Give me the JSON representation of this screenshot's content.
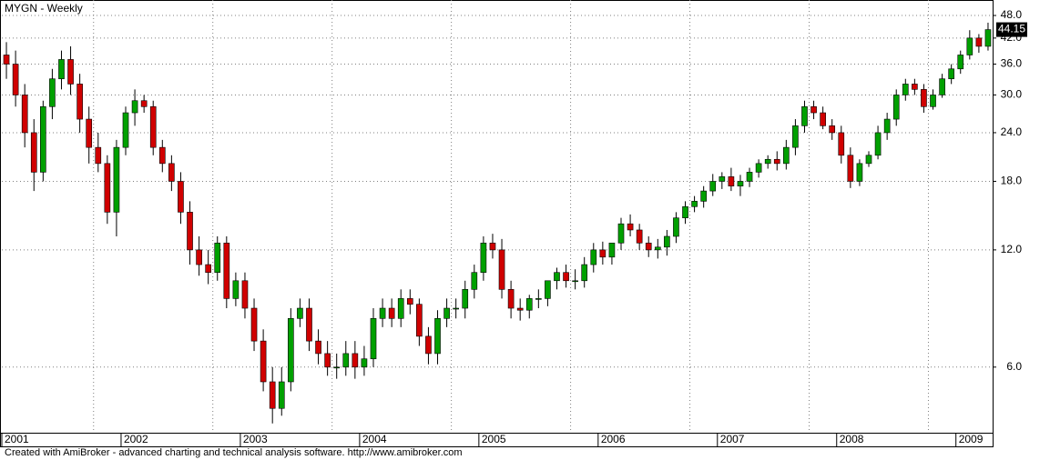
{
  "chart_data": {
    "type": "candlestick",
    "title": "MYGN - Weekly",
    "categories": [
      "2001",
      null,
      null,
      null,
      null,
      null,
      null,
      null,
      null,
      null,
      null,
      null,
      null,
      "2002",
      null,
      null,
      null,
      null,
      null,
      null,
      null,
      null,
      null,
      null,
      null,
      null,
      "2003",
      null,
      null,
      null,
      null,
      null,
      null,
      null,
      null,
      null,
      null,
      null,
      null,
      "2004",
      null,
      null,
      null,
      null,
      null,
      null,
      null,
      null,
      null,
      null,
      null,
      null,
      "2005",
      null,
      null,
      null,
      null,
      null,
      null,
      null,
      null,
      null,
      null,
      null,
      null,
      "2006",
      null,
      null,
      null,
      null,
      null,
      null,
      null,
      null,
      null,
      null,
      null,
      null,
      "2007",
      null,
      null,
      null,
      null,
      null,
      null,
      null,
      null,
      null,
      null,
      null,
      null,
      "2008",
      null,
      null,
      null,
      null,
      null,
      null,
      null,
      null,
      null,
      null,
      null,
      null,
      "2009",
      null,
      null,
      null
    ],
    "open": [
      38,
      36,
      30,
      24,
      19,
      28,
      33,
      37,
      32,
      26,
      22,
      20,
      15,
      22,
      27,
      29,
      28,
      22,
      20,
      18,
      15,
      12,
      11,
      10.5,
      12.5,
      9,
      10,
      8.5,
      7,
      5.5,
      4.7,
      5.5,
      8,
      8.5,
      7,
      6.5,
      6,
      6,
      6.5,
      6,
      6.3,
      8,
      8.5,
      8,
      9,
      8.7,
      7.2,
      6.5,
      8,
      8.5,
      8.5,
      9.5,
      10.5,
      12.5,
      12,
      9.5,
      8.5,
      8.4,
      9,
      9,
      10,
      10.5,
      10,
      10,
      11,
      12,
      11.5,
      12.5,
      14,
      13.5,
      12.5,
      12,
      12.2,
      13,
      14.5,
      15.5,
      16,
      17,
      18,
      18.5,
      17.5,
      18,
      19,
      20,
      20.5,
      20,
      22,
      25,
      28,
      27,
      25,
      24,
      21,
      18,
      20,
      21,
      24,
      26,
      30,
      32,
      31,
      28,
      30,
      33,
      35,
      38,
      42,
      40
    ],
    "high": [
      41,
      39,
      32,
      26,
      29,
      35,
      39,
      40,
      34,
      28,
      24,
      21,
      23,
      28,
      31,
      30,
      29,
      23,
      21,
      19,
      16,
      13,
      12,
      13,
      13,
      10.5,
      10.5,
      9,
      7.5,
      6,
      6,
      8.5,
      9,
      9,
      7.5,
      7,
      6.5,
      7,
      7,
      6.8,
      8.5,
      9,
      9,
      9.5,
      9.5,
      9,
      7.6,
      8.4,
      9,
      9,
      10,
      11,
      13,
      13.2,
      12.8,
      10,
      9,
      9.2,
      9.5,
      9.6,
      10.8,
      11,
      10.7,
      11.5,
      12.5,
      12.6,
      12.3,
      14.5,
      14.8,
      14,
      13,
      12.8,
      13.5,
      15,
      16,
      16.5,
      17.5,
      18.8,
      19,
      19.5,
      18.7,
      19.5,
      20.5,
      21,
      21.5,
      23,
      26,
      29,
      29,
      28,
      26,
      25,
      22,
      20.5,
      21.5,
      25,
      27,
      31,
      33,
      33,
      32,
      31,
      34,
      36,
      39,
      44,
      43,
      46
    ],
    "low": [
      33,
      28,
      22,
      17,
      18,
      26,
      31,
      30,
      24,
      20,
      19,
      14,
      13,
      21,
      25,
      27,
      21,
      19,
      17,
      14,
      11,
      10.3,
      9.8,
      10,
      8.5,
      8.6,
      8,
      6.6,
      5.2,
      4.3,
      4.5,
      5.2,
      7.6,
      6.6,
      6.1,
      5.7,
      5.6,
      5.7,
      5.6,
      5.7,
      6,
      7.6,
      7.6,
      7.6,
      8.2,
      6.8,
      6.1,
      6.1,
      7.6,
      8,
      8,
      9,
      10,
      11.4,
      9,
      8,
      7.9,
      8,
      8.5,
      8.6,
      9.5,
      9.6,
      9.5,
      9.6,
      10.5,
      11,
      11,
      12,
      13,
      12,
      11.5,
      11.4,
      11.6,
      12.5,
      14,
      15,
      15.4,
      16.5,
      17.2,
      17,
      16.5,
      17.4,
      18.4,
      19.4,
      19.2,
      19.3,
      21,
      24,
      26,
      24.5,
      23,
      20,
      17.3,
      17.5,
      19.6,
      20.5,
      23,
      25,
      29,
      30,
      27,
      27.5,
      29.5,
      32,
      34,
      37,
      38.5,
      39
    ],
    "close": [
      36,
      30,
      24,
      19,
      28,
      33,
      37,
      32,
      26,
      22,
      20,
      15,
      22,
      27,
      29,
      28,
      22,
      20,
      18,
      15,
      12,
      11,
      10.5,
      12.5,
      9,
      10,
      8.5,
      7,
      5.5,
      4.7,
      5.5,
      8,
      8.5,
      7,
      6.5,
      6,
      6,
      6.5,
      6,
      6.3,
      8,
      8.5,
      8,
      9,
      8.7,
      7.2,
      6.5,
      8,
      8.5,
      8.5,
      9.5,
      10.5,
      12.5,
      12,
      9.5,
      8.5,
      8.4,
      9,
      9,
      10,
      10.5,
      10,
      10,
      11,
      12,
      11.5,
      12.5,
      14,
      13.5,
      12.5,
      12,
      12.2,
      13,
      14.5,
      15.5,
      16,
      17,
      18,
      18.5,
      17.5,
      18,
      19,
      20,
      20.5,
      20,
      22,
      25,
      28,
      27,
      25,
      24,
      21,
      18,
      20,
      21,
      24,
      26,
      30,
      32,
      31,
      28,
      30,
      33,
      35,
      38,
      42,
      40,
      44.15
    ],
    "up_color": "#00a000",
    "down_color": "#d00000",
    "ylim": [
      4.07,
      52.6
    ],
    "log_scale": true,
    "grid": true,
    "yticks": [
      {
        "value": 6,
        "label": "6.0"
      },
      {
        "value": 12,
        "label": "12.0"
      },
      {
        "value": 18,
        "label": "18.0"
      },
      {
        "value": 24,
        "label": "24.0"
      },
      {
        "value": 30,
        "label": "30.0"
      },
      {
        "value": 36,
        "label": "36.0"
      },
      {
        "value": 42,
        "label": "42.0"
      },
      {
        "value": 48,
        "label": "48.0"
      }
    ]
  },
  "footer": "Created with AmiBroker - advanced charting and technical analysis software. http://www.amibroker.com"
}
